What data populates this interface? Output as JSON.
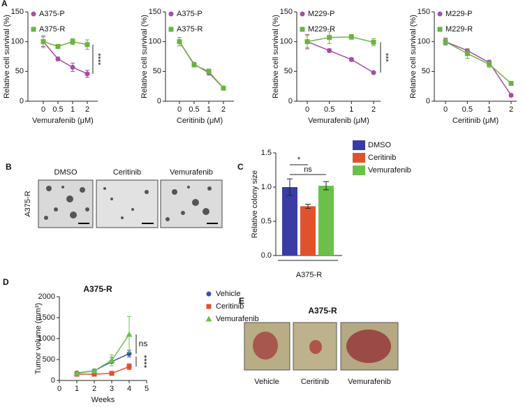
{
  "chart_data": [
    {
      "type": "line",
      "panel": "A",
      "categories": [
        "0",
        "0.5",
        "1",
        "2"
      ],
      "x_label": "Vemurafenib (μM)",
      "y_label": "Relative cell survival (%)",
      "ylim": [
        0,
        150
      ],
      "yticks": [
        0,
        50,
        100,
        150
      ],
      "annotations": [
        "****"
      ],
      "series": [
        {
          "name": "A375-P",
          "color": "#a64ca6",
          "marker": "circle",
          "values": [
            100,
            71,
            57,
            46
          ],
          "errors": [
            8,
            3,
            7,
            6
          ]
        },
        {
          "name": "A375-R",
          "color": "#6ab43e",
          "marker": "square",
          "values": [
            100,
            92,
            100,
            95
          ],
          "errors": [
            10,
            3,
            5,
            8
          ]
        }
      ]
    },
    {
      "type": "line",
      "categories": [
        "0",
        "0.5",
        "1",
        "2"
      ],
      "x_label": "Ceritinib (μM)",
      "y_label": "Relative cell survival (%)",
      "ylim": [
        0,
        150
      ],
      "yticks": [
        0,
        50,
        100,
        150
      ],
      "annotations": [],
      "series": [
        {
          "name": "A375-P",
          "color": "#a64ca6",
          "marker": "circle",
          "values": [
            100,
            62,
            48,
            22
          ],
          "errors": [
            7,
            3,
            4,
            3
          ]
        },
        {
          "name": "A375-R",
          "color": "#6ab43e",
          "marker": "square",
          "values": [
            100,
            61,
            50,
            22
          ],
          "errors": [
            7,
            3,
            4,
            3
          ]
        }
      ]
    },
    {
      "type": "line",
      "categories": [
        "0",
        "0.5",
        "1",
        "2"
      ],
      "x_label": "Vemurafenib (μM)",
      "y_label": "Relative cell survival (%)",
      "ylim": [
        0,
        150
      ],
      "yticks": [
        0,
        50,
        100,
        150
      ],
      "annotations": [
        "***"
      ],
      "series": [
        {
          "name": "M229-P",
          "color": "#a64ca6",
          "marker": "circle",
          "values": [
            100,
            85,
            70,
            48
          ],
          "errors": [
            12,
            3,
            3,
            2
          ]
        },
        {
          "name": "M229-R",
          "color": "#6ab43e",
          "marker": "square",
          "values": [
            100,
            107,
            108,
            99
          ],
          "errors": [
            10,
            10,
            4,
            6
          ]
        }
      ]
    },
    {
      "type": "line",
      "categories": [
        "0",
        "0.5",
        "1",
        "2"
      ],
      "x_label": "Ceritinib (μM)",
      "y_label": "Relative cell survival (%)",
      "ylim": [
        0,
        150
      ],
      "yticks": [
        0,
        50,
        100,
        150
      ],
      "annotations": [],
      "series": [
        {
          "name": "M229-P",
          "color": "#a64ca6",
          "marker": "circle",
          "values": [
            100,
            85,
            65,
            10
          ],
          "errors": [
            5,
            3,
            4,
            2
          ]
        },
        {
          "name": "M229-R",
          "color": "#6ab43e",
          "marker": "square",
          "values": [
            100,
            80,
            62,
            30
          ],
          "errors": [
            6,
            8,
            5,
            3
          ]
        }
      ]
    },
    {
      "type": "bar",
      "panel": "C",
      "categories": [
        "DMSO",
        "Ceritinib",
        "Vemurafenib"
      ],
      "colors": [
        "#3b3ba6",
        "#e0522c",
        "#6cc04a"
      ],
      "values": [
        1.0,
        0.72,
        1.02
      ],
      "errors": [
        0.12,
        0.03,
        0.06
      ],
      "x_label": "A375-R",
      "y_label": "Relative colony size",
      "ylim": [
        0,
        1.5
      ],
      "yticks": [
        {
          "value": 0,
          "label": "0.0"
        },
        {
          "value": 0.5,
          "label": "0.5"
        },
        {
          "value": 1,
          "label": "1.0"
        },
        {
          "value": 1.5,
          "label": "1.5"
        }
      ],
      "annotations": [
        "*",
        "ns"
      ]
    },
    {
      "type": "xyline",
      "panel": "D",
      "title": "A375-R",
      "x": [
        1,
        2,
        3,
        4
      ],
      "x_label": "Weeks",
      "y_label": "Tumor volume (mm³)",
      "xlim": [
        0,
        5
      ],
      "xticks": [
        0,
        1,
        2,
        3,
        4,
        5
      ],
      "ylim": [
        0,
        2000
      ],
      "yticks": [
        0,
        500,
        1000,
        1500,
        2000
      ],
      "annotations": [
        "ns",
        "****"
      ],
      "series": [
        {
          "name": "Vehicle",
          "color": "#3b4fb0",
          "marker": "circle",
          "values": [
            180,
            230,
            450,
            640
          ],
          "errors": [
            30,
            20,
            100,
            80
          ]
        },
        {
          "name": "Ceritinib",
          "color": "#e0522c",
          "marker": "square",
          "values": [
            150,
            150,
            170,
            330
          ],
          "errors": [
            20,
            20,
            20,
            70
          ]
        },
        {
          "name": "Vemurafenib",
          "color": "#6cc04a",
          "marker": "triangle",
          "values": [
            170,
            230,
            480,
            1100
          ],
          "errors": [
            30,
            20,
            130,
            430
          ]
        }
      ]
    }
  ],
  "images": [
    {
      "panel": "B",
      "row_label": "A375-R",
      "labels": [
        "DMSO",
        "Ceritinib",
        "Vemurafenib"
      ]
    },
    {
      "panel": "E",
      "title": "A375-R",
      "labels": [
        "Vehicle",
        "Ceritinib",
        "Vemurafenib"
      ]
    }
  ]
}
